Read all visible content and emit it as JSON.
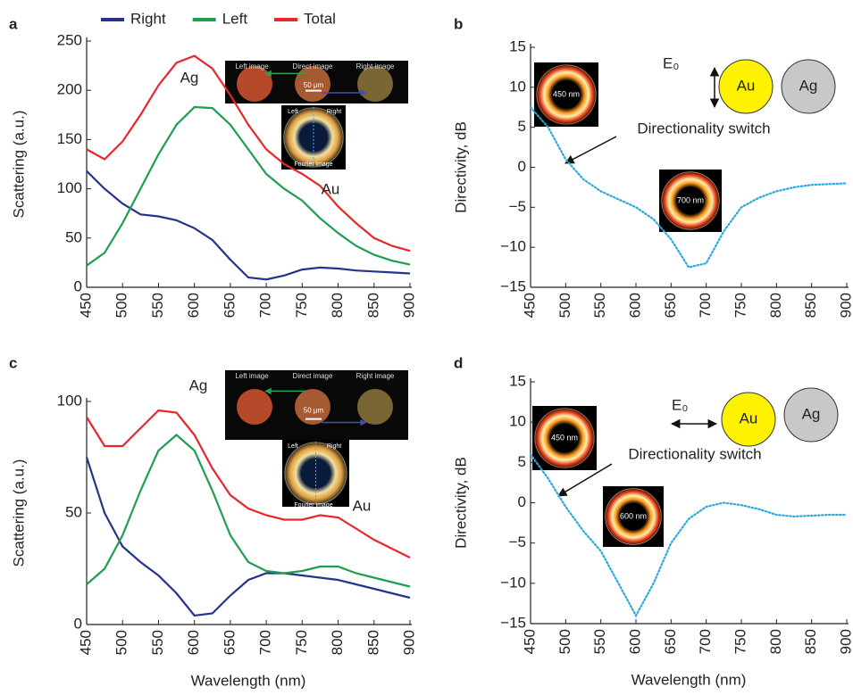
{
  "chart_data": [
    {
      "type": "line",
      "panel_label": "a",
      "ylabel": "Scattering (a.u.)",
      "x": [
        450,
        475,
        500,
        525,
        550,
        575,
        600,
        625,
        650,
        675,
        700,
        725,
        750,
        775,
        800,
        825,
        850,
        875,
        900
      ],
      "series": [
        {
          "name": "Right",
          "color": "#26338c",
          "values": [
            118,
            100,
            85,
            74,
            72,
            68,
            60,
            48,
            28,
            10,
            8,
            12,
            18,
            20,
            19,
            17,
            16,
            15,
            14
          ]
        },
        {
          "name": "Left",
          "color": "#1e9e4f",
          "values": [
            22,
            35,
            65,
            100,
            135,
            165,
            183,
            182,
            165,
            140,
            115,
            100,
            88,
            70,
            55,
            42,
            33,
            27,
            23
          ]
        },
        {
          "name": "Total",
          "color": "#e8262b",
          "values": [
            140,
            130,
            148,
            175,
            205,
            228,
            235,
            222,
            195,
            165,
            140,
            125,
            115,
            103,
            82,
            65,
            50,
            42,
            37
          ]
        }
      ],
      "xlim": [
        450,
        900
      ],
      "xticks": [
        450,
        500,
        550,
        600,
        650,
        700,
        750,
        800,
        850,
        900
      ],
      "ylim": [
        0,
        250
      ],
      "yticks": [
        0,
        50,
        100,
        150,
        200,
        250
      ],
      "legend": "top",
      "annotations": [
        "Ag",
        "Au",
        "Left image",
        "Direct image",
        "Right image",
        "50 μm",
        "Left",
        "Right",
        "Fourier image"
      ]
    },
    {
      "type": "line",
      "panel_label": "b",
      "ylabel": "Directivity, dB",
      "x": [
        450,
        475,
        500,
        525,
        550,
        575,
        600,
        625,
        650,
        675,
        700,
        725,
        750,
        775,
        800,
        825,
        850,
        875,
        900
      ],
      "series": [
        {
          "color": "#29a9e0",
          "dotted": true,
          "values": [
            7.5,
            5,
            1,
            -1.5,
            -3,
            -4,
            -5,
            -6.5,
            -9,
            -12.5,
            -12,
            -8,
            -5,
            -3.8,
            -3,
            -2.5,
            -2.2,
            -2.1,
            -2
          ]
        }
      ],
      "xlim": [
        450,
        900
      ],
      "xticks": [
        450,
        500,
        550,
        600,
        650,
        700,
        750,
        800,
        850,
        900
      ],
      "ylim": [
        -15,
        15
      ],
      "yticks": [
        {
          "value": -15,
          "label": "−15"
        },
        {
          "value": -10,
          "label": "−10"
        },
        {
          "value": -5,
          "label": "−5"
        },
        0,
        5,
        10,
        15
      ],
      "annotations": [
        "Directionality switch",
        "E₀",
        "Au",
        "Ag",
        "450 nm",
        "700 nm"
      ]
    },
    {
      "type": "line",
      "panel_label": "c",
      "ylabel": "Scattering (a.u.)",
      "xlabel": "Wavelength (nm)",
      "x": [
        450,
        475,
        500,
        525,
        550,
        575,
        600,
        625,
        650,
        675,
        700,
        725,
        750,
        775,
        800,
        825,
        850,
        875,
        900
      ],
      "series": [
        {
          "color": "#26338c",
          "values": [
            75,
            50,
            35,
            28,
            22,
            14,
            4,
            5,
            13,
            20,
            23,
            23,
            22,
            21,
            20,
            18,
            16,
            14,
            12
          ]
        },
        {
          "color": "#1e9e4f",
          "values": [
            18,
            25,
            40,
            60,
            78,
            85,
            78,
            60,
            40,
            28,
            24,
            23,
            24,
            26,
            26,
            23,
            21,
            19,
            17
          ]
        },
        {
          "color": "#e8262b",
          "values": [
            93,
            80,
            80,
            88,
            96,
            95,
            85,
            70,
            58,
            52,
            49,
            47,
            47,
            49,
            48,
            43,
            38,
            34,
            30
          ]
        }
      ],
      "xlim": [
        450,
        900
      ],
      "xticks": [
        450,
        500,
        550,
        600,
        650,
        700,
        750,
        800,
        850,
        900
      ],
      "ylim": [
        0,
        100
      ],
      "yticks": [
        0,
        50,
        100
      ],
      "annotations": [
        "Ag",
        "Au",
        "Left image",
        "Direct image",
        "Right image",
        "50 μm",
        "Left",
        "Right",
        "Fourier image"
      ]
    },
    {
      "type": "line",
      "panel_label": "d",
      "ylabel": "Directivity, dB",
      "xlabel": "Wavelength (nm)",
      "x": [
        450,
        475,
        500,
        525,
        550,
        575,
        600,
        625,
        650,
        675,
        700,
        725,
        750,
        775,
        800,
        825,
        850,
        875,
        900
      ],
      "series": [
        {
          "color": "#29a9e0",
          "dotted": true,
          "values": [
            6,
            3,
            -0.5,
            -3.5,
            -6,
            -10,
            -14,
            -10,
            -5,
            -2,
            -0.5,
            0,
            -0.3,
            -0.8,
            -1.5,
            -1.7,
            -1.6,
            -1.5,
            -1.5
          ]
        }
      ],
      "xlim": [
        450,
        900
      ],
      "xticks": [
        450,
        500,
        550,
        600,
        650,
        700,
        750,
        800,
        850,
        900
      ],
      "ylim": [
        -15,
        15
      ],
      "yticks": [
        {
          "value": -15,
          "label": "−15"
        },
        {
          "value": -10,
          "label": "−10"
        },
        {
          "value": -5,
          "label": "−5"
        },
        0,
        5,
        10,
        15
      ],
      "annotations": [
        "Directionality switch",
        "E₀",
        "Au",
        "Ag",
        "450 nm",
        "600 nm"
      ]
    }
  ]
}
